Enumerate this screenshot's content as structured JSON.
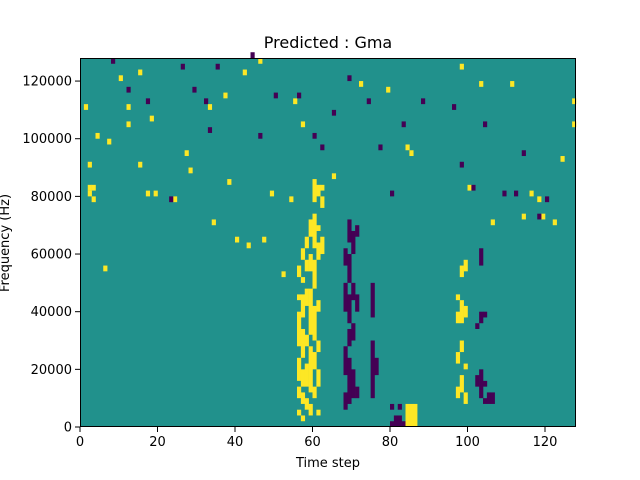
{
  "chart_data": {
    "type": "heatmap",
    "title": "Predicted : Gma",
    "xlabel": "Time step",
    "ylabel": "Frequency (Hz)",
    "xlim": [
      0,
      128
    ],
    "ylim": [
      0,
      128000
    ],
    "x_ticks": [
      0,
      20,
      40,
      60,
      80,
      100,
      120
    ],
    "x_tick_labels": [
      "0",
      "20",
      "40",
      "60",
      "80",
      "100",
      "120"
    ],
    "y_ticks": [
      0,
      20000,
      40000,
      60000,
      80000,
      100000,
      120000
    ],
    "y_tick_labels": [
      "0",
      "20000",
      "40000",
      "60000",
      "80000",
      "100000",
      "120000"
    ],
    "grid": false,
    "colormap": "viridis",
    "value_levels": [
      -1,
      0,
      1
    ],
    "level_colors": {
      "-1": "#440154",
      "0": "#21918c",
      "1": "#fde725"
    },
    "n_time_steps": 128,
    "n_freq_bins": 128,
    "freq_bin_width_hz": 1000,
    "background_value": 0,
    "cells_positive": [
      [
        1,
        110
      ],
      [
        2,
        90
      ],
      [
        2,
        82
      ],
      [
        2,
        80
      ],
      [
        3,
        82
      ],
      [
        3,
        78
      ],
      [
        4,
        100
      ],
      [
        6,
        54
      ],
      [
        7,
        98
      ],
      [
        10,
        120
      ],
      [
        12,
        110
      ],
      [
        12,
        104
      ],
      [
        15,
        122
      ],
      [
        15,
        90
      ],
      [
        17,
        80
      ],
      [
        18,
        106
      ],
      [
        19,
        80
      ],
      [
        24,
        78
      ],
      [
        27,
        94
      ],
      [
        28,
        88
      ],
      [
        33,
        110
      ],
      [
        34,
        70
      ],
      [
        37,
        114
      ],
      [
        38,
        84
      ],
      [
        40,
        64
      ],
      [
        42,
        122
      ],
      [
        43,
        62
      ],
      [
        46,
        126
      ],
      [
        47,
        64
      ],
      [
        49,
        80
      ],
      [
        52,
        52
      ],
      [
        54,
        78
      ],
      [
        55,
        112
      ],
      [
        57,
        104
      ],
      [
        62,
        82
      ],
      [
        65,
        86
      ],
      [
        72,
        118
      ],
      [
        79,
        116
      ],
      [
        84,
        96
      ],
      [
        85,
        94
      ],
      [
        98,
        124
      ],
      [
        100,
        82
      ],
      [
        103,
        118
      ],
      [
        106,
        70
      ],
      [
        111,
        118
      ],
      [
        114,
        72
      ],
      [
        116,
        80
      ],
      [
        118,
        78
      ],
      [
        119,
        72
      ],
      [
        122,
        70
      ],
      [
        124,
        92
      ],
      [
        127,
        104
      ],
      [
        127,
        112
      ]
    ],
    "cells_negative": [
      [
        8,
        126
      ],
      [
        12,
        116
      ],
      [
        17,
        112
      ],
      [
        23,
        78
      ],
      [
        26,
        124
      ],
      [
        29,
        116
      ],
      [
        32,
        112
      ],
      [
        33,
        102
      ],
      [
        35,
        124
      ],
      [
        44,
        128
      ],
      [
        46,
        100
      ],
      [
        50,
        114
      ],
      [
        56,
        114
      ],
      [
        60,
        100
      ],
      [
        62,
        96
      ],
      [
        65,
        108
      ],
      [
        69,
        120
      ],
      [
        74,
        112
      ],
      [
        77,
        96
      ],
      [
        80,
        80
      ],
      [
        83,
        104
      ],
      [
        88,
        112
      ],
      [
        96,
        110
      ],
      [
        98,
        90
      ],
      [
        101,
        82
      ],
      [
        104,
        104
      ],
      [
        109,
        80
      ],
      [
        112,
        80
      ],
      [
        114,
        94
      ],
      [
        118,
        72
      ],
      [
        120,
        78
      ]
    ],
    "column_bands": [
      {
        "x": 56,
        "value": 1,
        "segments": [
          [
            4,
            6
          ],
          [
            10,
            14
          ],
          [
            16,
            24
          ],
          [
            28,
            40
          ],
          [
            44,
            46
          ],
          [
            52,
            56
          ]
        ]
      },
      {
        "x": 57,
        "value": 1,
        "segments": [
          [
            2,
            4
          ],
          [
            8,
            12
          ],
          [
            14,
            20
          ],
          [
            24,
            34
          ],
          [
            38,
            46
          ],
          [
            50,
            52
          ],
          [
            58,
            62
          ]
        ]
      },
      {
        "x": 58,
        "value": 1,
        "segments": [
          [
            6,
            10
          ],
          [
            14,
            22
          ],
          [
            28,
            32
          ],
          [
            42,
            48
          ],
          [
            54,
            58
          ],
          [
            62,
            66
          ]
        ]
      },
      {
        "x": 59,
        "value": 1,
        "segments": [
          [
            4,
            8
          ],
          [
            12,
            28
          ],
          [
            32,
            48
          ],
          [
            54,
            60
          ],
          [
            66,
            72
          ]
        ]
      },
      {
        "x": 60,
        "value": 1,
        "segments": [
          [
            10,
            14
          ],
          [
            20,
            26
          ],
          [
            30,
            42
          ],
          [
            48,
            58
          ],
          [
            62,
            74
          ],
          [
            78,
            86
          ]
        ]
      },
      {
        "x": 61,
        "value": 1,
        "segments": [
          [
            4,
            6
          ],
          [
            14,
            20
          ],
          [
            26,
            30
          ],
          [
            40,
            44
          ],
          [
            58,
            64
          ],
          [
            68,
            70
          ],
          [
            80,
            84
          ]
        ]
      },
      {
        "x": 62,
        "value": 1,
        "segments": [
          [
            60,
            66
          ],
          [
            76,
            80
          ]
        ]
      },
      {
        "x": 68,
        "value": -1,
        "segments": [
          [
            6,
            12
          ],
          [
            18,
            28
          ],
          [
            40,
            50
          ],
          [
            56,
            62
          ]
        ]
      },
      {
        "x": 69,
        "value": -1,
        "segments": [
          [
            8,
            24
          ],
          [
            28,
            34
          ],
          [
            36,
            46
          ],
          [
            50,
            60
          ],
          [
            64,
            72
          ]
        ]
      },
      {
        "x": 70,
        "value": -1,
        "segments": [
          [
            10,
            20
          ],
          [
            30,
            36
          ],
          [
            44,
            50
          ],
          [
            60,
            68
          ]
        ]
      },
      {
        "x": 71,
        "value": -1,
        "segments": [
          [
            10,
            14
          ],
          [
            40,
            46
          ],
          [
            66,
            70
          ]
        ]
      },
      {
        "x": 75,
        "value": -1,
        "segments": [
          [
            10,
            30
          ],
          [
            38,
            50
          ]
        ]
      },
      {
        "x": 76,
        "value": -1,
        "segments": [
          [
            18,
            24
          ]
        ]
      },
      {
        "x": 80,
        "value": -1,
        "segments": [
          [
            0,
            2
          ],
          [
            6,
            8
          ]
        ]
      },
      {
        "x": 81,
        "value": -1,
        "segments": [
          [
            0,
            4
          ]
        ]
      },
      {
        "x": 82,
        "value": -1,
        "segments": [
          [
            0,
            4
          ],
          [
            6,
            8
          ]
        ]
      },
      {
        "x": 83,
        "value": -1,
        "segments": [
          [
            0,
            2
          ]
        ]
      },
      {
        "x": 84,
        "value": 1,
        "segments": [
          [
            0,
            8
          ]
        ]
      },
      {
        "x": 85,
        "value": 1,
        "segments": [
          [
            0,
            8
          ]
        ]
      },
      {
        "x": 86,
        "value": 1,
        "segments": [
          [
            0,
            8
          ]
        ]
      },
      {
        "x": 97,
        "value": 1,
        "segments": [
          [
            10,
            14
          ],
          [
            22,
            26
          ],
          [
            36,
            40
          ],
          [
            44,
            46
          ]
        ]
      },
      {
        "x": 98,
        "value": 1,
        "segments": [
          [
            12,
            18
          ],
          [
            26,
            30
          ],
          [
            36,
            44
          ],
          [
            52,
            56
          ]
        ]
      },
      {
        "x": 99,
        "value": 1,
        "segments": [
          [
            8,
            12
          ],
          [
            20,
            22
          ],
          [
            38,
            42
          ],
          [
            54,
            58
          ]
        ]
      },
      {
        "x": 102,
        "value": -1,
        "segments": [
          [
            14,
            18
          ],
          [
            34,
            36
          ]
        ]
      },
      {
        "x": 103,
        "value": -1,
        "segments": [
          [
            10,
            20
          ],
          [
            36,
            40
          ],
          [
            56,
            62
          ]
        ]
      },
      {
        "x": 104,
        "value": -1,
        "segments": [
          [
            8,
            10
          ],
          [
            14,
            16
          ],
          [
            38,
            40
          ]
        ]
      },
      {
        "x": 105,
        "value": -1,
        "segments": [
          [
            8,
            12
          ]
        ]
      },
      {
        "x": 106,
        "value": -1,
        "segments": [
          [
            8,
            12
          ]
        ]
      }
    ]
  }
}
